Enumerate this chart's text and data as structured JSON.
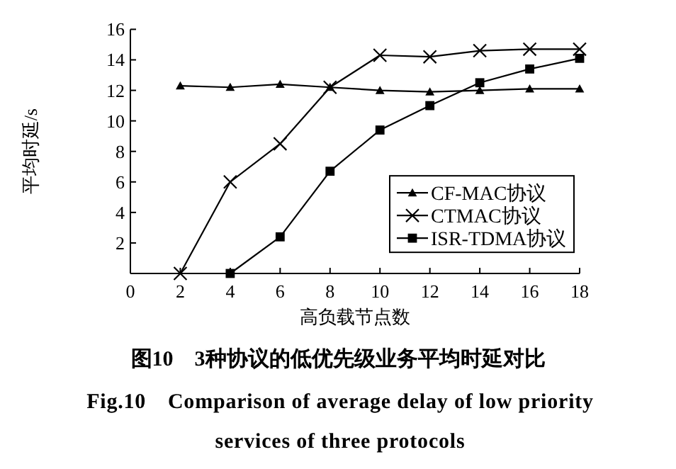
{
  "chart_data": {
    "type": "line",
    "title": "图10　3种协议的低优先级业务平均时延对比",
    "subtitle": "Fig.10　Comparison of average delay of low priority services of three protocols",
    "xlabel": "高负载节点数",
    "ylabel": "平均时延/s",
    "xlim": [
      0,
      18
    ],
    "ylim": [
      0,
      16
    ],
    "xticks": [
      0,
      2,
      4,
      6,
      8,
      10,
      12,
      14,
      16,
      18
    ],
    "yticks": [
      2,
      4,
      6,
      8,
      10,
      12,
      14,
      16
    ],
    "legend": "bottom right",
    "grid": false,
    "series": [
      {
        "name": "CF-MAC协议",
        "color": "#000000",
        "marker": "triangle",
        "x": [
          2,
          4,
          6,
          8,
          10,
          12,
          14,
          16,
          18
        ],
        "values": [
          12.3,
          12.2,
          12.4,
          12.2,
          12.0,
          11.9,
          12.0,
          12.1,
          12.1
        ]
      },
      {
        "name": "CTMAC协议",
        "color": "#000000",
        "marker": "cross",
        "x": [
          2,
          4,
          6,
          8,
          10,
          12,
          14,
          16,
          18
        ],
        "values": [
          0,
          6.0,
          8.5,
          12.2,
          14.3,
          14.2,
          14.6,
          14.7,
          14.7
        ]
      },
      {
        "name": "ISR-TDMA协议",
        "color": "#000000",
        "marker": "square",
        "x": [
          4,
          6,
          8,
          10,
          12,
          14,
          16,
          18
        ],
        "values": [
          0,
          2.4,
          6.7,
          9.4,
          11.0,
          12.5,
          13.4,
          14.1
        ]
      }
    ]
  }
}
